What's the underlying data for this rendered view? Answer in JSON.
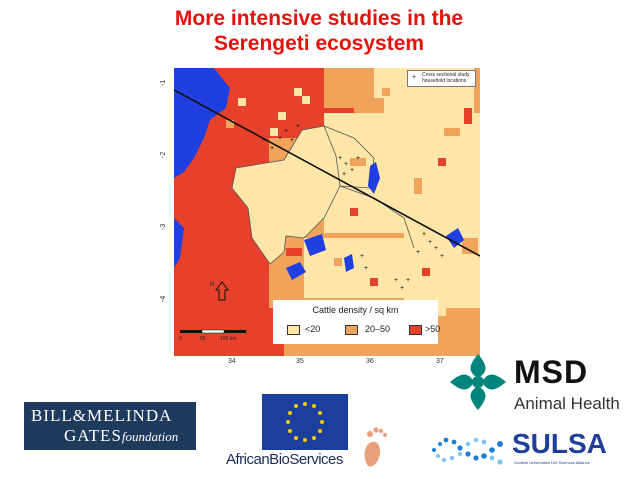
{
  "title_line1": "More intensive studies in the",
  "title_line2": "Serengeti ecosystem",
  "map": {
    "study_legend_text": "Cross sectional study household locations",
    "study_legend_symbol": "+",
    "density_legend_title": "Cattle density / sq km",
    "density_classes": [
      {
        "label": "<20",
        "color": "#fde6a8"
      },
      {
        "label": "20–50",
        "color": "#f0a35a"
      },
      {
        "label": ">50",
        "color": "#e8412b"
      }
    ],
    "water_color": "#1f3fe0",
    "longitudes": [
      "34",
      "35",
      "36",
      "37"
    ],
    "latitudes": [
      "-1",
      "-2",
      "-3",
      "-4"
    ],
    "north_label": "N",
    "scale_labels": [
      "0",
      "50",
      "100 km"
    ]
  },
  "logos": {
    "gates_line1": "BILL&MELINDA",
    "gates_line2": "GATES",
    "gates_line2_italic": "foundation",
    "msd_word": "MSD",
    "msd_sub": "Animal Health",
    "abs_text": "AfricanBioServices",
    "sulsa_word": "SULSA",
    "sulsa_sub": "Scottish Universities Life Sciences Alliance"
  }
}
